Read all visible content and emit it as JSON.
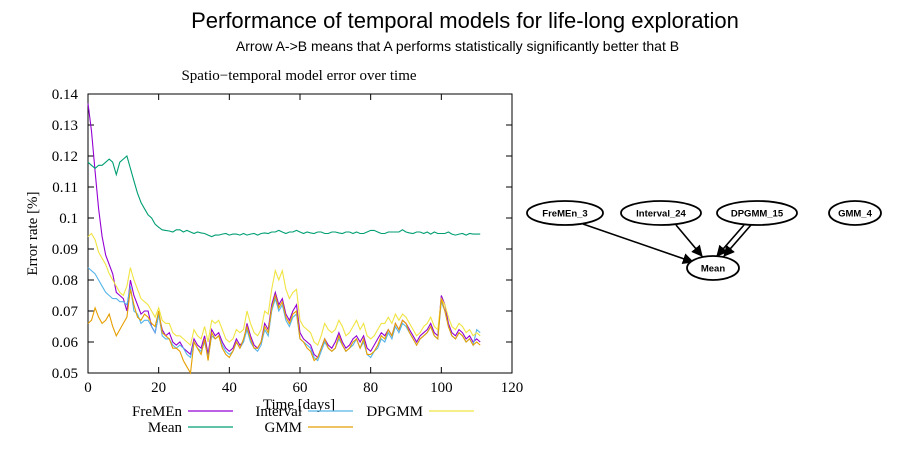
{
  "header": {
    "title": "Performance of temporal models for life-long exploration",
    "subtitle": "Arrow A->B means that A performs statistically significantly better that B"
  },
  "chart_data": {
    "type": "line",
    "title": "Spatio−temporal model error over time",
    "xlabel": "Time [days]",
    "ylabel": "Error rate [%]",
    "xlim": [
      0,
      120
    ],
    "ylim": [
      0.05,
      0.14
    ],
    "xticks": [
      "0",
      "20",
      "40",
      "60",
      "80",
      "100",
      "120"
    ],
    "yticks": [
      "0.05",
      "0.06",
      "0.07",
      "0.08",
      "0.09",
      "0.1",
      "0.11",
      "0.12",
      "0.13",
      "0.14"
    ],
    "grid": false,
    "legend_position": "bottom",
    "x": [
      0,
      1,
      2,
      3,
      4,
      5,
      6,
      7,
      8,
      9,
      10,
      11,
      12,
      13,
      14,
      15,
      16,
      17,
      18,
      19,
      20,
      21,
      22,
      23,
      24,
      25,
      26,
      27,
      28,
      29,
      30,
      31,
      32,
      33,
      34,
      35,
      36,
      37,
      38,
      39,
      40,
      41,
      42,
      43,
      44,
      45,
      46,
      47,
      48,
      49,
      50,
      51,
      52,
      53,
      54,
      55,
      56,
      57,
      58,
      59,
      60,
      61,
      62,
      63,
      64,
      65,
      66,
      67,
      68,
      69,
      70,
      71,
      72,
      73,
      74,
      75,
      76,
      77,
      78,
      79,
      80,
      81,
      82,
      83,
      84,
      85,
      86,
      87,
      88,
      89,
      90,
      91,
      92,
      93,
      94,
      95,
      96,
      97,
      98,
      99,
      100,
      101,
      102,
      103,
      104,
      105,
      106,
      107,
      108,
      109,
      110,
      111
    ],
    "series": [
      {
        "name": "FreMEn",
        "color": "#9400d3",
        "values": [
          0.137,
          0.128,
          0.115,
          0.103,
          0.094,
          0.088,
          0.085,
          0.082,
          0.076,
          0.075,
          0.074,
          0.07,
          0.08,
          0.075,
          0.072,
          0.069,
          0.07,
          0.07,
          0.065,
          0.063,
          0.069,
          0.064,
          0.062,
          0.063,
          0.06,
          0.059,
          0.06,
          0.058,
          0.057,
          0.056,
          0.061,
          0.059,
          0.058,
          0.062,
          0.056,
          0.064,
          0.062,
          0.063,
          0.06,
          0.058,
          0.057,
          0.058,
          0.061,
          0.059,
          0.06,
          0.066,
          0.062,
          0.059,
          0.058,
          0.06,
          0.066,
          0.064,
          0.072,
          0.076,
          0.072,
          0.074,
          0.069,
          0.067,
          0.07,
          0.072,
          0.063,
          0.061,
          0.06,
          0.059,
          0.056,
          0.055,
          0.058,
          0.061,
          0.059,
          0.058,
          0.06,
          0.063,
          0.06,
          0.058,
          0.059,
          0.061,
          0.062,
          0.06,
          0.062,
          0.058,
          0.057,
          0.059,
          0.061,
          0.063,
          0.062,
          0.064,
          0.062,
          0.066,
          0.064,
          0.067,
          0.066,
          0.064,
          0.062,
          0.06,
          0.062,
          0.063,
          0.064,
          0.066,
          0.063,
          0.062,
          0.075,
          0.072,
          0.066,
          0.063,
          0.062,
          0.064,
          0.063,
          0.061,
          0.062,
          0.06,
          0.061,
          0.06
        ]
      },
      {
        "name": "Interval",
        "color": "#56b4e9",
        "values": [
          0.084,
          0.083,
          0.082,
          0.08,
          0.078,
          0.076,
          0.075,
          0.074,
          0.074,
          0.073,
          0.073,
          0.072,
          0.078,
          0.07,
          0.069,
          0.066,
          0.067,
          0.067,
          0.065,
          0.063,
          0.069,
          0.062,
          0.061,
          0.061,
          0.059,
          0.058,
          0.059,
          0.058,
          0.056,
          0.055,
          0.06,
          0.058,
          0.057,
          0.06,
          0.055,
          0.062,
          0.061,
          0.062,
          0.059,
          0.057,
          0.056,
          0.057,
          0.06,
          0.058,
          0.06,
          0.064,
          0.06,
          0.058,
          0.057,
          0.059,
          0.064,
          0.062,
          0.07,
          0.074,
          0.07,
          0.072,
          0.067,
          0.065,
          0.068,
          0.069,
          0.061,
          0.06,
          0.059,
          0.058,
          0.055,
          0.054,
          0.057,
          0.06,
          0.058,
          0.057,
          0.058,
          0.061,
          0.059,
          0.057,
          0.058,
          0.059,
          0.061,
          0.058,
          0.06,
          0.056,
          0.055,
          0.057,
          0.058,
          0.061,
          0.06,
          0.063,
          0.061,
          0.065,
          0.063,
          0.066,
          0.065,
          0.063,
          0.061,
          0.059,
          0.061,
          0.062,
          0.063,
          0.065,
          0.062,
          0.061,
          0.073,
          0.07,
          0.065,
          0.062,
          0.061,
          0.063,
          0.062,
          0.06,
          0.061,
          0.059,
          0.064,
          0.063
        ]
      },
      {
        "name": "DPGMM",
        "color": "#f0e442",
        "values": [
          0.094,
          0.095,
          0.093,
          0.089,
          0.087,
          0.085,
          0.082,
          0.08,
          0.078,
          0.076,
          0.075,
          0.078,
          0.084,
          0.08,
          0.077,
          0.074,
          0.073,
          0.072,
          0.07,
          0.068,
          0.071,
          0.067,
          0.066,
          0.066,
          0.063,
          0.062,
          0.062,
          0.061,
          0.06,
          0.059,
          0.064,
          0.062,
          0.061,
          0.065,
          0.06,
          0.067,
          0.066,
          0.067,
          0.064,
          0.061,
          0.06,
          0.061,
          0.064,
          0.063,
          0.064,
          0.07,
          0.066,
          0.063,
          0.062,
          0.064,
          0.07,
          0.069,
          0.077,
          0.083,
          0.08,
          0.083,
          0.077,
          0.074,
          0.076,
          0.077,
          0.067,
          0.065,
          0.064,
          0.063,
          0.06,
          0.059,
          0.062,
          0.066,
          0.064,
          0.063,
          0.064,
          0.067,
          0.065,
          0.062,
          0.063,
          0.065,
          0.067,
          0.064,
          0.066,
          0.062,
          0.061,
          0.062,
          0.064,
          0.066,
          0.066,
          0.068,
          0.066,
          0.069,
          0.067,
          0.069,
          0.068,
          0.066,
          0.064,
          0.062,
          0.063,
          0.065,
          0.066,
          0.068,
          0.065,
          0.064,
          0.074,
          0.072,
          0.068,
          0.065,
          0.064,
          0.066,
          0.065,
          0.063,
          0.064,
          0.062,
          0.063,
          0.062
        ]
      },
      {
        "name": "Mean",
        "color": "#009e73",
        "values": [
          0.118,
          0.117,
          0.116,
          0.117,
          0.117,
          0.118,
          0.119,
          0.118,
          0.114,
          0.118,
          0.119,
          0.12,
          0.116,
          0.112,
          0.108,
          0.105,
          0.103,
          0.101,
          0.1,
          0.098,
          0.097,
          0.0962,
          0.096,
          0.0958,
          0.0955,
          0.0962,
          0.0962,
          0.0955,
          0.096,
          0.0955,
          0.095,
          0.0955,
          0.0952,
          0.095,
          0.0945,
          0.094,
          0.0945,
          0.0945,
          0.0948,
          0.095,
          0.0945,
          0.0948,
          0.0948,
          0.0945,
          0.095,
          0.0945,
          0.0948,
          0.095,
          0.0945,
          0.095,
          0.0952,
          0.095,
          0.0955,
          0.0955,
          0.096,
          0.0955,
          0.095,
          0.0955,
          0.0955,
          0.096,
          0.0955,
          0.095,
          0.0955,
          0.0952,
          0.095,
          0.0955,
          0.0955,
          0.095,
          0.095,
          0.0955,
          0.0955,
          0.0952,
          0.095,
          0.0955,
          0.0955,
          0.095,
          0.0955,
          0.095,
          0.095,
          0.0955,
          0.096,
          0.096,
          0.0955,
          0.095,
          0.095,
          0.0955,
          0.0955,
          0.0955,
          0.0955,
          0.0962,
          0.0955,
          0.0952,
          0.095,
          0.0955,
          0.0955,
          0.095,
          0.0955,
          0.0948,
          0.0955,
          0.095,
          0.095,
          0.095,
          0.0955,
          0.0948,
          0.0945,
          0.0948,
          0.095,
          0.0945,
          0.095,
          0.0948,
          0.0948,
          0.0948
        ]
      },
      {
        "name": "GMM",
        "color": "#e69f00",
        "values": [
          0.066,
          0.067,
          0.071,
          0.068,
          0.066,
          0.067,
          0.069,
          0.065,
          0.062,
          0.064,
          0.066,
          0.068,
          0.077,
          0.072,
          0.068,
          0.067,
          0.069,
          0.068,
          0.066,
          0.065,
          0.07,
          0.063,
          0.062,
          0.061,
          0.058,
          0.058,
          0.057,
          0.054,
          0.052,
          0.05,
          0.06,
          0.058,
          0.056,
          0.061,
          0.054,
          0.063,
          0.061,
          0.062,
          0.058,
          0.056,
          0.055,
          0.057,
          0.06,
          0.058,
          0.061,
          0.065,
          0.061,
          0.058,
          0.058,
          0.06,
          0.065,
          0.063,
          0.071,
          0.075,
          0.071,
          0.073,
          0.068,
          0.066,
          0.069,
          0.07,
          0.061,
          0.06,
          0.058,
          0.057,
          0.054,
          0.055,
          0.058,
          0.061,
          0.058,
          0.057,
          0.058,
          0.062,
          0.059,
          0.057,
          0.058,
          0.06,
          0.061,
          0.058,
          0.061,
          0.056,
          0.056,
          0.057,
          0.059,
          0.062,
          0.061,
          0.064,
          0.062,
          0.066,
          0.064,
          0.067,
          0.066,
          0.063,
          0.061,
          0.059,
          0.061,
          0.062,
          0.063,
          0.065,
          0.062,
          0.061,
          0.074,
          0.07,
          0.065,
          0.062,
          0.061,
          0.063,
          0.062,
          0.06,
          0.061,
          0.059,
          0.06,
          0.059
        ]
      }
    ]
  },
  "diagram": {
    "nodes": [
      {
        "id": "fremen",
        "label": "FreMEn_3"
      },
      {
        "id": "interval",
        "label": "Interval_24"
      },
      {
        "id": "dpgmm",
        "label": "DPGMM_15"
      },
      {
        "id": "gmm",
        "label": "GMM_4"
      },
      {
        "id": "mean",
        "label": "Mean"
      }
    ],
    "edges": [
      {
        "from": "fremen",
        "to": "mean"
      },
      {
        "from": "interval",
        "to": "mean"
      },
      {
        "from": "dpgmm",
        "to": "mean"
      },
      {
        "from": "dpgmm",
        "to": "mean"
      }
    ]
  }
}
